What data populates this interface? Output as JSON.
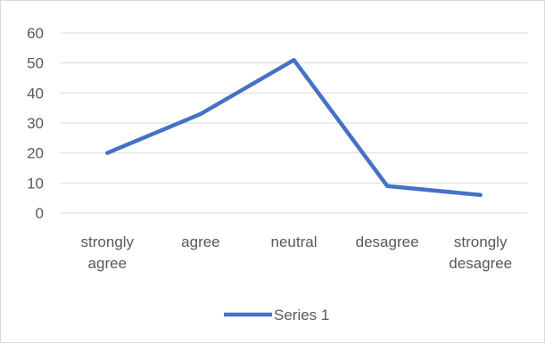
{
  "chart_data": {
    "type": "line",
    "categories": [
      [
        "strongly",
        "agree"
      ],
      [
        "agree"
      ],
      [
        "neutral"
      ],
      [
        "desagree"
      ],
      [
        "strongly",
        "desagree"
      ]
    ],
    "series": [
      {
        "name": "Series 1",
        "values": [
          20,
          33,
          51,
          9,
          6
        ],
        "color": "#4472c4"
      }
    ],
    "ylim": [
      0,
      60
    ],
    "yticks": [
      0,
      10,
      20,
      30,
      40,
      50,
      60
    ],
    "grid": true,
    "legend": "bottom",
    "gridline_color": "#d9d9d9",
    "text_color": "#595959"
  }
}
